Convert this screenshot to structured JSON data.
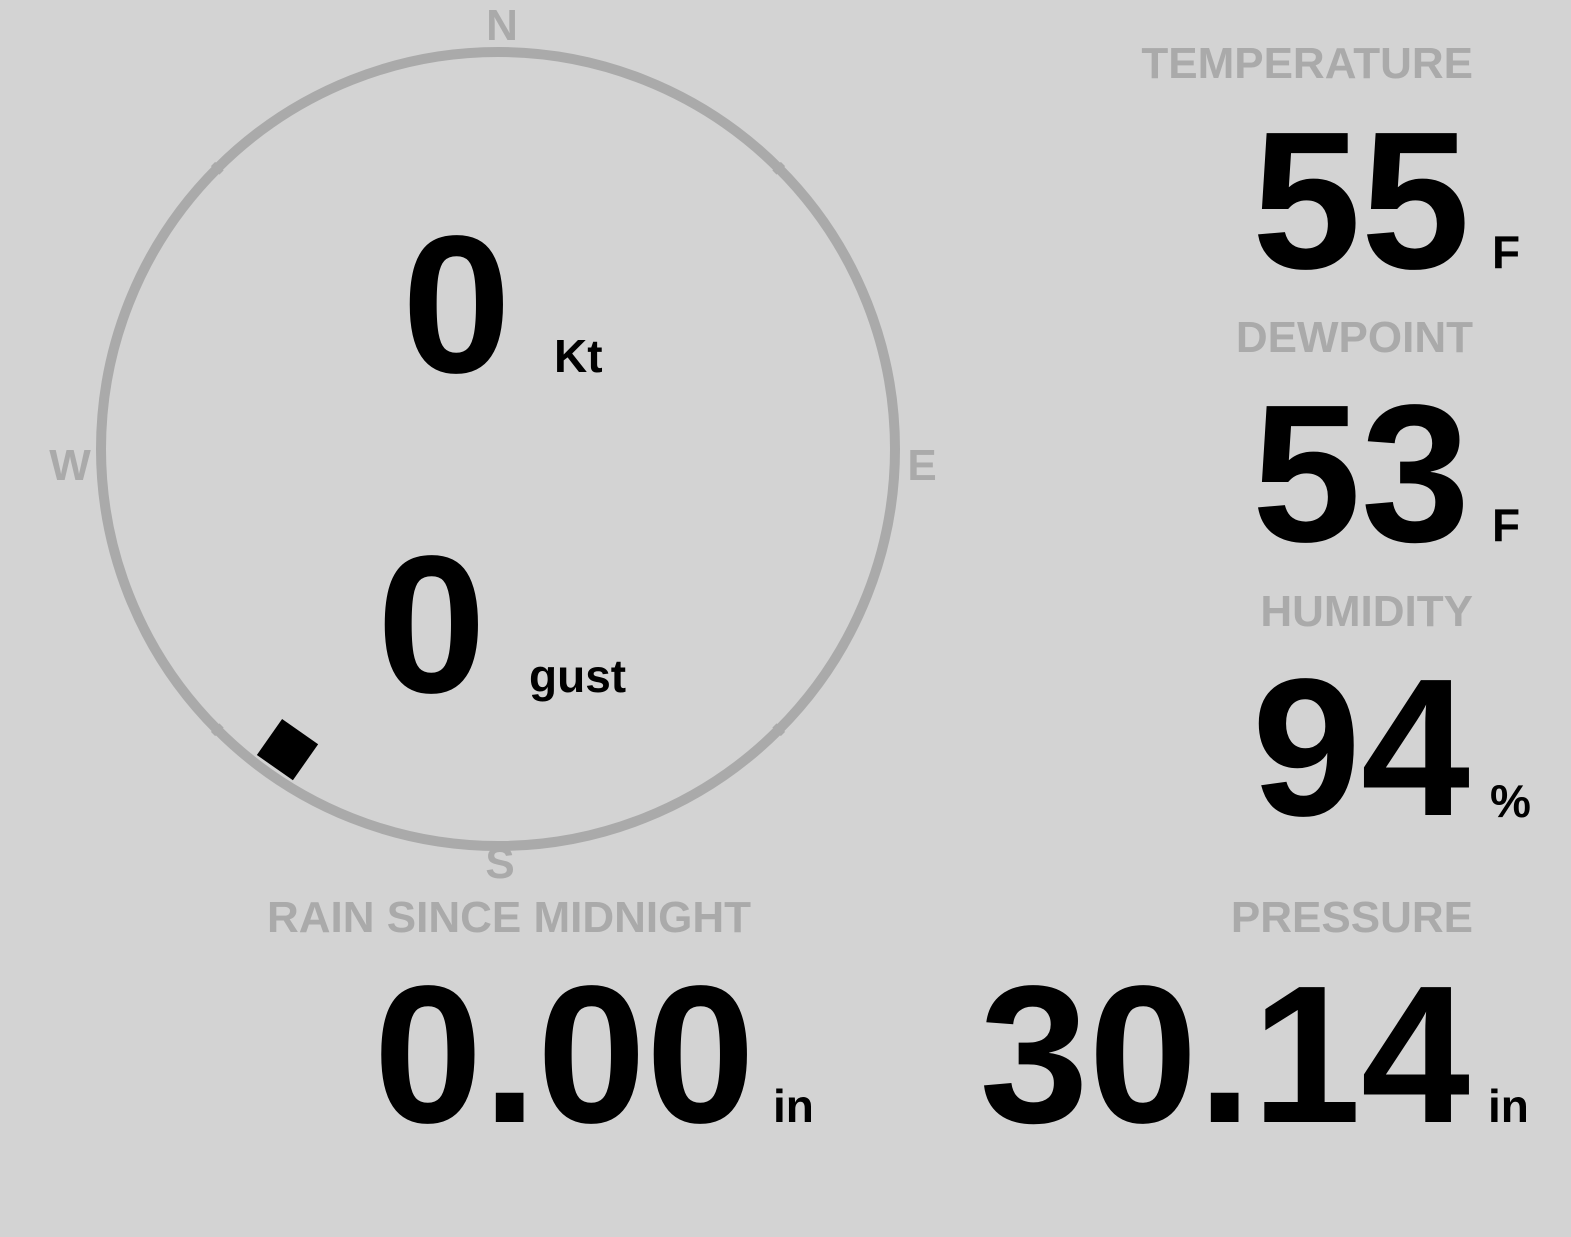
{
  "colors": {
    "background": "#d3d3d3",
    "label": "#aaaaaa",
    "value": "#000000",
    "compass_ring": "#aaaaaa"
  },
  "compass": {
    "cardinals": {
      "n": "N",
      "e": "E",
      "s": "S",
      "w": "W"
    },
    "wind_direction_deg": 215,
    "marker_icon": "wind-direction-marker"
  },
  "wind": {
    "speed": "0",
    "speed_unit": "Kt",
    "gust": "0",
    "gust_unit": "gust"
  },
  "temperature": {
    "label": "TEMPERATURE",
    "value": "55",
    "unit": "F"
  },
  "dewpoint": {
    "label": "DEWPOINT",
    "value": "53",
    "unit": "F"
  },
  "humidity": {
    "label": "HUMIDITY",
    "value": "94",
    "unit": "%"
  },
  "pressure": {
    "label": "PRESSURE",
    "value": "30.14",
    "unit": "in"
  },
  "rain": {
    "label": "RAIN SINCE MIDNIGHT",
    "value": "0.00",
    "unit": "in"
  }
}
